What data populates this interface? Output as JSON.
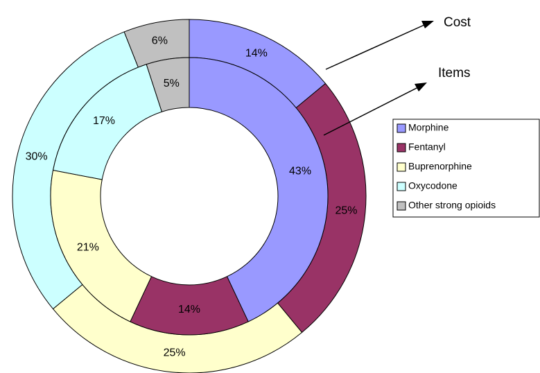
{
  "chart_data": {
    "type": "doughnut",
    "categories": [
      "Morphine",
      "Fentanyl",
      "Buprenorphine",
      "Oxycodone",
      "Other strong opioids"
    ],
    "colors": [
      "#9999ff",
      "#993366",
      "#ffffcc",
      "#ccffff",
      "#c0c0c0"
    ],
    "series": [
      {
        "name": "Cost",
        "values": [
          14,
          25,
          25,
          30,
          6
        ],
        "value_labels": [
          "14%",
          "25%",
          "25%",
          "30%",
          "6%"
        ]
      },
      {
        "name": "Items",
        "values": [
          43,
          14,
          21,
          17,
          5
        ],
        "value_labels": [
          "43%",
          "14%",
          "21%",
          "17%",
          "5%"
        ]
      }
    ],
    "legend": "right"
  }
}
